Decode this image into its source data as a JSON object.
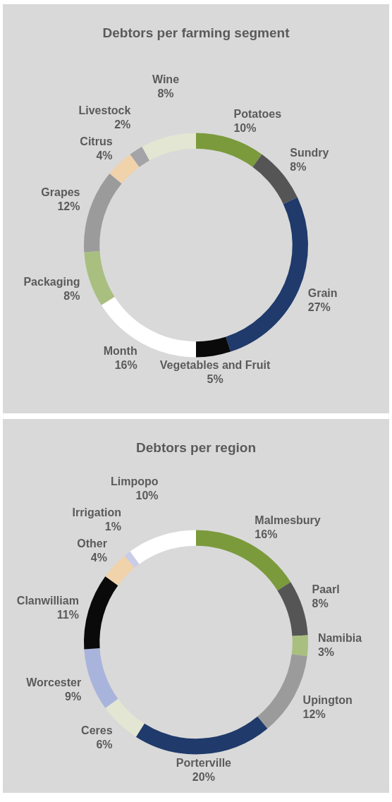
{
  "chart_data": [
    {
      "type": "donut",
      "title": "Debtors per farming segment",
      "categories": [
        "Potatoes",
        "Sundry",
        "Grain",
        "Vegetables and Fruit",
        "Month",
        "Packaging",
        "Grapes",
        "Citrus",
        "Livestock",
        "Wine"
      ],
      "values": [
        10,
        8,
        27,
        5,
        16,
        8,
        12,
        4,
        2,
        8
      ],
      "value_labels": [
        "10%",
        "8%",
        "27%",
        "5%",
        "16%",
        "8%",
        "12%",
        "4%",
        "2%",
        "8%"
      ],
      "colors": [
        "#7b9a3c",
        "#555555",
        "#1f3a6b",
        "#0a0a0a",
        "#ffffff",
        "#a9bf80",
        "#9b9b9b",
        "#f0d2ab",
        "#a3a3a8",
        "#e3e6d2"
      ],
      "legend": false
    },
    {
      "type": "donut",
      "title": "Debtors per region",
      "categories": [
        "Malmesbury",
        "Paarl",
        "Namibia",
        "Upington",
        "Porterville",
        "Ceres",
        "Worcester",
        "Clanwilliam",
        "Other",
        "Irrigation",
        "Limpopo"
      ],
      "values": [
        16,
        8,
        3,
        12,
        20,
        6,
        9,
        11,
        4,
        1,
        10
      ],
      "value_labels": [
        "16%",
        "8%",
        "3%",
        "12%",
        "20%",
        "6%",
        "9%",
        "11%",
        "4%",
        "1%",
        "10%"
      ],
      "colors": [
        "#7b9a3c",
        "#555555",
        "#a9bf80",
        "#9b9b9b",
        "#1f3a6b",
        "#e3e6d2",
        "#a9b4dc",
        "#0a0a0a",
        "#f0d2ab",
        "#c9cde8",
        "#ffffff"
      ],
      "legend": false
    }
  ]
}
